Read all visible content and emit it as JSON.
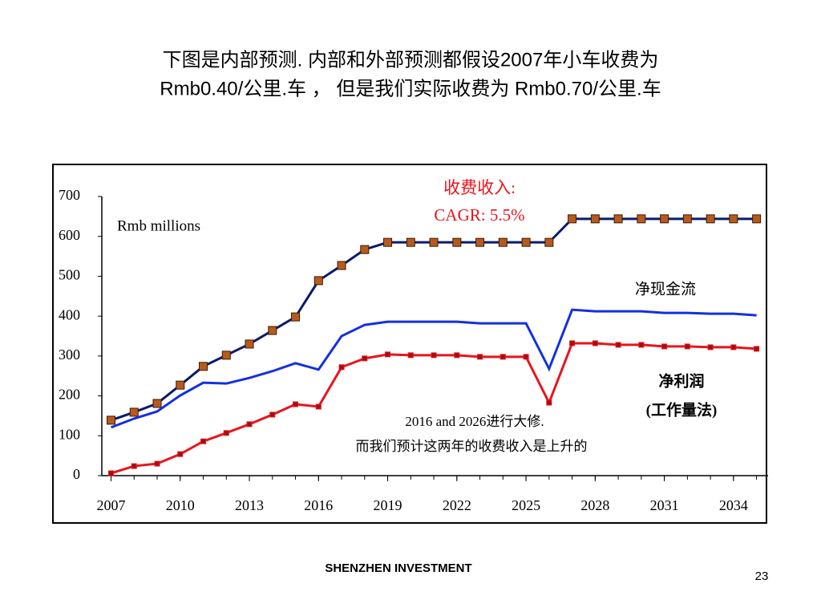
{
  "title_lines": [
    "下图是内部预测. 内部和外部预测都假设2007年小车收费为",
    "Rmb0.40/公里.车 ， 但是我们实际收费为 Rmb0.70/公里.车"
  ],
  "chart_data": {
    "type": "line",
    "ylabel": "Rmb millions",
    "annotations": [
      "CAGR: 5.5%",
      "(工作量法)",
      "2016 and 2026进行大修.",
      "而我们预计这两年的收费收入是上升的"
    ],
    "x": [
      2007,
      2008,
      2009,
      2010,
      2011,
      2012,
      2013,
      2014,
      2015,
      2016,
      2017,
      2018,
      2019,
      2020,
      2021,
      2022,
      2023,
      2024,
      2025,
      2026,
      2027,
      2028,
      2029,
      2030,
      2031,
      2032,
      2033,
      2034,
      2035
    ],
    "xlim": [
      2006.6,
      2035.5
    ],
    "xticks": [
      2007,
      2010,
      2013,
      2016,
      2019,
      2022,
      2025,
      2028,
      2031,
      2034
    ],
    "ylim": [
      0,
      700
    ],
    "yticks": [
      0,
      100,
      200,
      300,
      400,
      500,
      600,
      700
    ],
    "series": [
      {
        "name": "收费收入:",
        "color": "#0a1a6e",
        "marker": "square",
        "marker_color": "#b85a1e",
        "values": [
          139,
          159,
          181,
          227,
          274,
          302,
          330,
          364,
          398,
          489,
          527,
          567,
          585,
          585,
          585,
          585,
          585,
          585,
          585,
          585,
          644,
          644,
          644,
          644,
          644,
          644,
          644,
          644,
          644
        ]
      },
      {
        "name": "净现金流",
        "color": "#1430e0",
        "marker": "none",
        "values": [
          121,
          143,
          161,
          201,
          233,
          231,
          245,
          262,
          282,
          266,
          350,
          378,
          386,
          386,
          386,
          386,
          382,
          382,
          382,
          268,
          416,
          412,
          412,
          412,
          408,
          408,
          406,
          406,
          402
        ]
      },
      {
        "name": "净利润",
        "color": "#e8141c",
        "marker": "square",
        "marker_color": "#a01010",
        "values": [
          6,
          24,
          30,
          54,
          86,
          107,
          129,
          153,
          179,
          173,
          272,
          294,
          304,
          302,
          302,
          302,
          298,
          298,
          298,
          183,
          332,
          332,
          328,
          328,
          324,
          324,
          322,
          322,
          318
        ]
      }
    ]
  },
  "footer": {
    "company": "SHENZHEN INVESTMENT",
    "page": "23"
  }
}
